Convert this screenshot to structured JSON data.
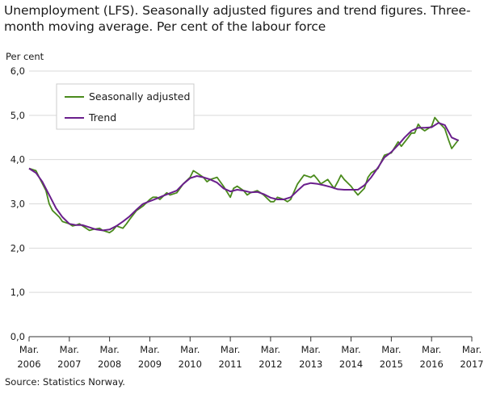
{
  "title": "Unemployment (LFS). Seasonally adjusted figures and trend figures. Three-month moving average. Per cent of the labour force",
  "source": "Source: Statistics Norway.",
  "colors": {
    "seasonal": "#4a8a1c",
    "trend": "#6a1f8c",
    "grid": "#d9d9d9",
    "axis": "#333333"
  },
  "chart_data": {
    "type": "line",
    "ylabel": "Per cent",
    "ylim": [
      0,
      6
    ],
    "yticks": [
      "0,0",
      "1,0",
      "2,0",
      "3,0",
      "4,0",
      "5,0",
      "6,0"
    ],
    "xticks": [
      {
        "month": "Mar.",
        "year": "2006"
      },
      {
        "month": "Mar.",
        "year": "2007"
      },
      {
        "month": "Mar.",
        "year": "2008"
      },
      {
        "month": "Mar.",
        "year": "2009"
      },
      {
        "month": "Mar.",
        "year": "2010"
      },
      {
        "month": "Mar.",
        "year": "2011"
      },
      {
        "month": "Mar.",
        "year": "2012"
      },
      {
        "month": "Mar.",
        "year": "2013"
      },
      {
        "month": "Mar.",
        "year": "2014"
      },
      {
        "month": "Mar.",
        "year": "2015"
      },
      {
        "month": "Mar.",
        "year": "2016"
      },
      {
        "month": "Mar.",
        "year": "2017"
      }
    ],
    "xlim": [
      2006.0,
      2017.0
    ],
    "grid": true,
    "legend_position": "top-left",
    "series": [
      {
        "name": "Seasonally adjusted",
        "color": "#4a8a1c",
        "points": [
          [
            2006.0,
            3.8
          ],
          [
            2006.17,
            3.75
          ],
          [
            2006.25,
            3.6
          ],
          [
            2006.42,
            3.3
          ],
          [
            2006.5,
            3.0
          ],
          [
            2006.58,
            2.85
          ],
          [
            2006.75,
            2.7
          ],
          [
            2006.83,
            2.6
          ],
          [
            2007.0,
            2.55
          ],
          [
            2007.08,
            2.5
          ],
          [
            2007.17,
            2.52
          ],
          [
            2007.25,
            2.55
          ],
          [
            2007.42,
            2.45
          ],
          [
            2007.5,
            2.4
          ],
          [
            2007.58,
            2.42
          ],
          [
            2007.75,
            2.45
          ],
          [
            2007.83,
            2.4
          ],
          [
            2008.0,
            2.35
          ],
          [
            2008.08,
            2.4
          ],
          [
            2008.17,
            2.5
          ],
          [
            2008.33,
            2.45
          ],
          [
            2008.42,
            2.55
          ],
          [
            2008.5,
            2.65
          ],
          [
            2008.67,
            2.85
          ],
          [
            2008.75,
            2.9
          ],
          [
            2008.83,
            2.95
          ],
          [
            2009.0,
            3.1
          ],
          [
            2009.08,
            3.15
          ],
          [
            2009.17,
            3.15
          ],
          [
            2009.25,
            3.1
          ],
          [
            2009.42,
            3.25
          ],
          [
            2009.5,
            3.2
          ],
          [
            2009.67,
            3.25
          ],
          [
            2009.75,
            3.35
          ],
          [
            2009.83,
            3.45
          ],
          [
            2010.0,
            3.6
          ],
          [
            2010.08,
            3.75
          ],
          [
            2010.17,
            3.7
          ],
          [
            2010.33,
            3.6
          ],
          [
            2010.42,
            3.5
          ],
          [
            2010.5,
            3.55
          ],
          [
            2010.67,
            3.6
          ],
          [
            2010.75,
            3.5
          ],
          [
            2010.83,
            3.4
          ],
          [
            2011.0,
            3.15
          ],
          [
            2011.08,
            3.35
          ],
          [
            2011.17,
            3.4
          ],
          [
            2011.33,
            3.3
          ],
          [
            2011.42,
            3.2
          ],
          [
            2011.5,
            3.25
          ],
          [
            2011.67,
            3.3
          ],
          [
            2011.75,
            3.25
          ],
          [
            2011.83,
            3.2
          ],
          [
            2012.0,
            3.05
          ],
          [
            2012.08,
            3.05
          ],
          [
            2012.17,
            3.15
          ],
          [
            2012.33,
            3.1
          ],
          [
            2012.42,
            3.05
          ],
          [
            2012.5,
            3.1
          ],
          [
            2012.67,
            3.45
          ],
          [
            2012.75,
            3.55
          ],
          [
            2012.83,
            3.65
          ],
          [
            2013.0,
            3.6
          ],
          [
            2013.08,
            3.65
          ],
          [
            2013.17,
            3.55
          ],
          [
            2013.25,
            3.45
          ],
          [
            2013.42,
            3.55
          ],
          [
            2013.5,
            3.45
          ],
          [
            2013.58,
            3.35
          ],
          [
            2013.67,
            3.5
          ],
          [
            2013.75,
            3.65
          ],
          [
            2013.83,
            3.55
          ],
          [
            2014.0,
            3.4
          ],
          [
            2014.08,
            3.3
          ],
          [
            2014.17,
            3.2
          ],
          [
            2014.33,
            3.35
          ],
          [
            2014.42,
            3.6
          ],
          [
            2014.5,
            3.7
          ],
          [
            2014.67,
            3.8
          ],
          [
            2014.75,
            3.95
          ],
          [
            2014.83,
            4.1
          ],
          [
            2015.0,
            4.15
          ],
          [
            2015.17,
            4.4
          ],
          [
            2015.25,
            4.3
          ],
          [
            2015.42,
            4.5
          ],
          [
            2015.5,
            4.6
          ],
          [
            2015.58,
            4.6
          ],
          [
            2015.67,
            4.8
          ],
          [
            2015.75,
            4.7
          ],
          [
            2015.83,
            4.65
          ],
          [
            2016.0,
            4.75
          ],
          [
            2016.08,
            4.95
          ],
          [
            2016.17,
            4.85
          ],
          [
            2016.33,
            4.7
          ],
          [
            2016.42,
            4.45
          ],
          [
            2016.5,
            4.25
          ],
          [
            2016.67,
            4.45
          ]
        ]
      },
      {
        "name": "Trend",
        "color": "#6a1f8c",
        "points": [
          [
            2006.0,
            3.8
          ],
          [
            2006.17,
            3.7
          ],
          [
            2006.33,
            3.5
          ],
          [
            2006.5,
            3.2
          ],
          [
            2006.67,
            2.9
          ],
          [
            2006.83,
            2.7
          ],
          [
            2007.0,
            2.55
          ],
          [
            2007.17,
            2.52
          ],
          [
            2007.33,
            2.52
          ],
          [
            2007.5,
            2.47
          ],
          [
            2007.67,
            2.42
          ],
          [
            2007.83,
            2.4
          ],
          [
            2008.0,
            2.42
          ],
          [
            2008.17,
            2.5
          ],
          [
            2008.33,
            2.6
          ],
          [
            2008.5,
            2.72
          ],
          [
            2008.67,
            2.87
          ],
          [
            2008.83,
            3.0
          ],
          [
            2009.0,
            3.06
          ],
          [
            2009.17,
            3.12
          ],
          [
            2009.33,
            3.18
          ],
          [
            2009.5,
            3.24
          ],
          [
            2009.67,
            3.3
          ],
          [
            2009.83,
            3.45
          ],
          [
            2010.0,
            3.58
          ],
          [
            2010.17,
            3.63
          ],
          [
            2010.33,
            3.6
          ],
          [
            2010.5,
            3.55
          ],
          [
            2010.67,
            3.48
          ],
          [
            2010.83,
            3.35
          ],
          [
            2011.0,
            3.28
          ],
          [
            2011.17,
            3.32
          ],
          [
            2011.33,
            3.3
          ],
          [
            2011.5,
            3.26
          ],
          [
            2011.67,
            3.27
          ],
          [
            2011.83,
            3.22
          ],
          [
            2012.0,
            3.14
          ],
          [
            2012.17,
            3.1
          ],
          [
            2012.33,
            3.1
          ],
          [
            2012.5,
            3.15
          ],
          [
            2012.67,
            3.3
          ],
          [
            2012.83,
            3.43
          ],
          [
            2013.0,
            3.47
          ],
          [
            2013.17,
            3.45
          ],
          [
            2013.33,
            3.42
          ],
          [
            2013.5,
            3.38
          ],
          [
            2013.67,
            3.33
          ],
          [
            2013.83,
            3.32
          ],
          [
            2014.0,
            3.32
          ],
          [
            2014.17,
            3.32
          ],
          [
            2014.33,
            3.42
          ],
          [
            2014.5,
            3.6
          ],
          [
            2014.67,
            3.82
          ],
          [
            2014.83,
            4.05
          ],
          [
            2015.0,
            4.17
          ],
          [
            2015.17,
            4.33
          ],
          [
            2015.33,
            4.5
          ],
          [
            2015.5,
            4.65
          ],
          [
            2015.67,
            4.72
          ],
          [
            2015.83,
            4.72
          ],
          [
            2016.0,
            4.73
          ],
          [
            2016.17,
            4.83
          ],
          [
            2016.33,
            4.78
          ],
          [
            2016.5,
            4.5
          ],
          [
            2016.67,
            4.43
          ]
        ]
      }
    ]
  }
}
